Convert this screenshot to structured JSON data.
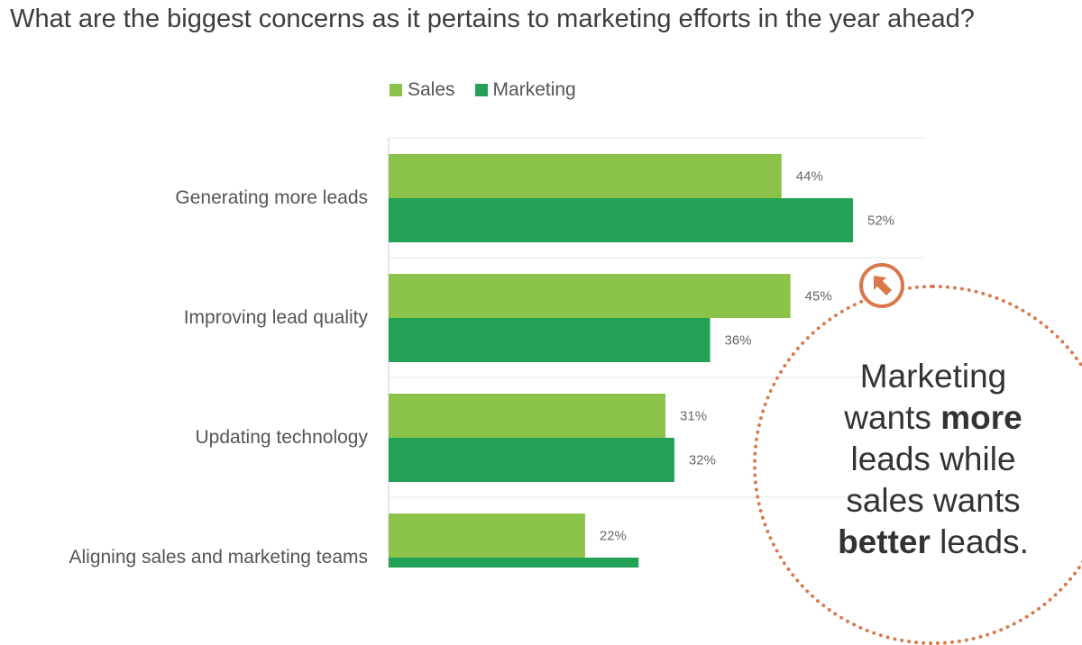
{
  "chart_data": {
    "type": "bar",
    "orientation": "horizontal",
    "title": "What are the biggest concerns as it pertains to marketing efforts in the year ahead?",
    "categories": [
      "Generating more leads",
      "Improving lead quality",
      "Updating technology",
      "Aligning sales and marketing teams"
    ],
    "series": [
      {
        "name": "Sales",
        "values": [
          44,
          45,
          31,
          22
        ],
        "labels": [
          "44%",
          "45%",
          "31%",
          "22%"
        ],
        "color": "#8bc34a"
      },
      {
        "name": "Marketing",
        "values": [
          52,
          36,
          32,
          28
        ],
        "labels": [
          "52%",
          "36%",
          "32%",
          ""
        ],
        "color": "#22a157"
      }
    ],
    "xlim": [
      0,
      60
    ],
    "legend": "top",
    "grid": true
  },
  "callout": {
    "line1": "Marketing",
    "line2a": "wants ",
    "line2b": "more",
    "line3": "leads while",
    "line4": "sales wants",
    "line5a": "better",
    "line5b": " leads.",
    "icon": "pointer-arrow-icon",
    "accent": "#d9784a"
  }
}
